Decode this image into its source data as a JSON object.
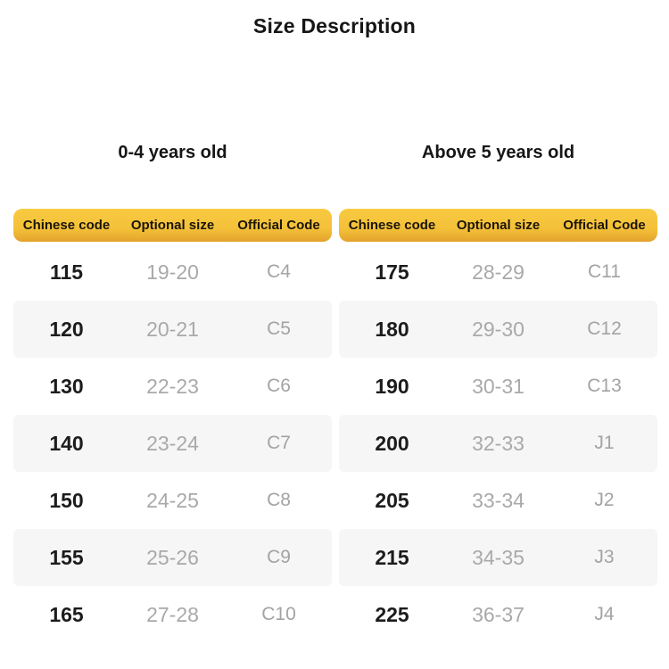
{
  "page_title": "Size Description",
  "colors": {
    "header_yellow_top": "#F8CA41",
    "header_yellow_bottom": "#E2A12C",
    "stripe_gray": "#F6F6F6",
    "primary_text": "#1C1C1C",
    "secondary_text": "#A9A9A9"
  },
  "chart_data": [
    {
      "type": "table",
      "title": "0-4 years old",
      "columns": [
        "Chinese code",
        "Optional size",
        "Official Code"
      ],
      "rows": [
        [
          "115",
          "19-20",
          "C4"
        ],
        [
          "120",
          "20-21",
          "C5"
        ],
        [
          "130",
          "22-23",
          "C6"
        ],
        [
          "140",
          "23-24",
          "C7"
        ],
        [
          "150",
          "24-25",
          "C8"
        ],
        [
          "155",
          "25-26",
          "C9"
        ],
        [
          "165",
          "27-28",
          "C10"
        ]
      ]
    },
    {
      "type": "table",
      "title": "Above 5 years old",
      "columns": [
        "Chinese code",
        "Optional size",
        "Official Code"
      ],
      "rows": [
        [
          "175",
          "28-29",
          "C11"
        ],
        [
          "180",
          "29-30",
          "C12"
        ],
        [
          "190",
          "30-31",
          "C13"
        ],
        [
          "200",
          "32-33",
          "J1"
        ],
        [
          "205",
          "33-34",
          "J2"
        ],
        [
          "215",
          "34-35",
          "J3"
        ],
        [
          "225",
          "36-37",
          "J4"
        ]
      ]
    }
  ]
}
